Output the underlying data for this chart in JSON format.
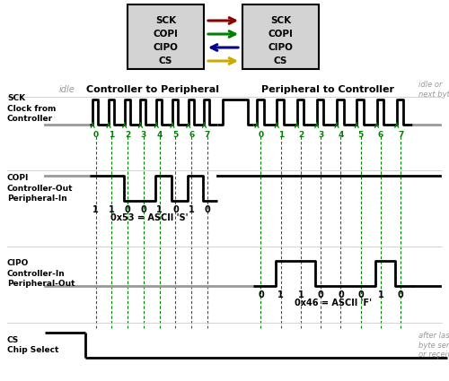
{
  "bg_color": "#ffffff",
  "box_fill": "#d3d3d3",
  "signal_color": "#000000",
  "green_color": "#008000",
  "red_color": "#8b0000",
  "blue_color": "#00008b",
  "gold_color": "#ccaa00",
  "gray_color": "#999999",
  "copi_bits": [
    1,
    1,
    0,
    0,
    1,
    0,
    1,
    0
  ],
  "cipo_bits": [
    0,
    1,
    1,
    0,
    0,
    0,
    1,
    0
  ],
  "copi_label": "0x53 = ASCII 'S'",
  "cipo_label": "0x46 = ASCII 'F'"
}
